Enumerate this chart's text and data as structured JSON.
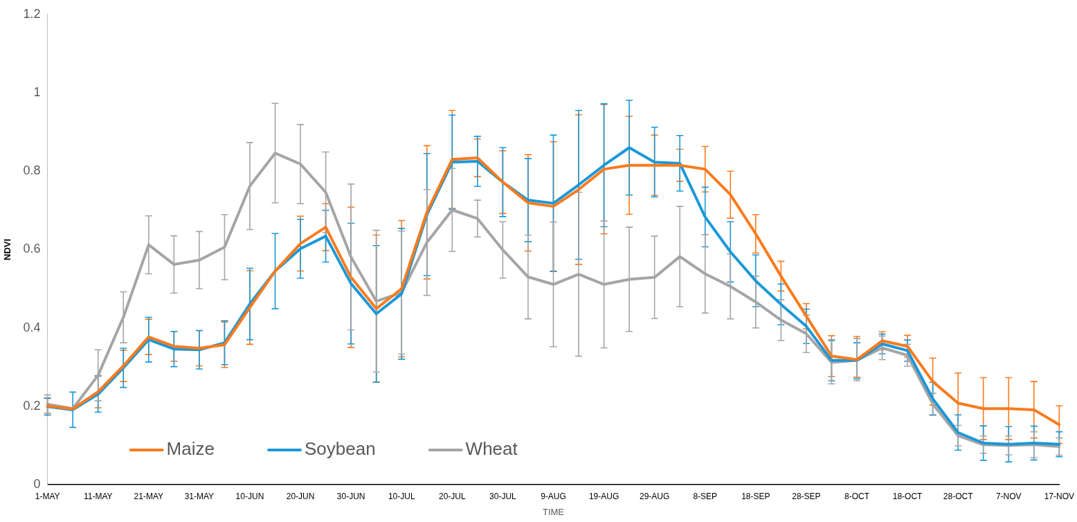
{
  "chart_data": {
    "type": "line",
    "xlabel": "TIME",
    "ylabel": "NDVI",
    "categories": [
      "1-MAY",
      null,
      "11-MAY",
      null,
      "21-MAY",
      null,
      "31-MAY",
      null,
      "10-JUN",
      null,
      "20-JUN",
      null,
      "30-JUN",
      null,
      "10-JUL",
      null,
      "20-JUL",
      null,
      "30-JUL",
      null,
      "9-AUG",
      null,
      "19-AUG",
      null,
      "29-AUG",
      null,
      "8-SEP",
      null,
      "18-SEP",
      null,
      "28-SEP",
      null,
      "8-OCT",
      null,
      "18-OCT",
      null,
      "28-OCT",
      null,
      "7-NOV",
      null,
      "17-NOV"
    ],
    "series": [
      {
        "name": "Maize",
        "color": "#f97b1e",
        "values": [
          0.201,
          0.193,
          0.237,
          0.303,
          0.377,
          0.353,
          0.348,
          0.357,
          0.452,
          0.545,
          0.615,
          0.657,
          0.529,
          0.449,
          0.5,
          0.695,
          0.83,
          0.834,
          0.772,
          0.719,
          0.71,
          0.753,
          0.805,
          0.815,
          0.815,
          0.815,
          0.805,
          0.74,
          0.64,
          0.532,
          0.43,
          0.328,
          0.319,
          0.367,
          0.353,
          0.263,
          0.208,
          0.194,
          0.194,
          0.191,
          0.153
        ],
        "errors": [
          0.019,
          null,
          0.041,
          0.04,
          0.045,
          0.038,
          0.045,
          0.058,
          0.094,
          null,
          0.07,
          0.06,
          0.179,
          0.188,
          0.174,
          0.17,
          0.125,
          0.048,
          0.08,
          0.123,
          0.165,
          0.191,
          0.165,
          0.125,
          0.077,
          0.041,
          0.058,
          0.06,
          0.049,
          0.038,
          0.032,
          0.052,
          [
            0.274,
            0.378
          ],
          0.023,
          0.028,
          0.06,
          0.077,
          0.079,
          0.079,
          0.072,
          0.048
        ]
      },
      {
        "name": "Soybean",
        "color": "#1b98d8",
        "values": [
          0.199,
          0.191,
          0.231,
          0.298,
          0.37,
          0.346,
          0.344,
          0.362,
          0.461,
          0.545,
          0.602,
          0.634,
          0.513,
          0.436,
          0.487,
          0.689,
          0.823,
          0.825,
          0.772,
          0.726,
          0.718,
          0.765,
          0.815,
          0.86,
          0.823,
          0.82,
          0.683,
          0.594,
          0.52,
          0.46,
          0.404,
          0.317,
          0.317,
          0.359,
          0.342,
          0.219,
          0.133,
          0.106,
          0.103,
          0.106,
          0.103
        ],
        "errors": [
          0.022,
          0.045,
          0.046,
          0.05,
          0.057,
          0.045,
          0.049,
          0.056,
          0.091,
          0.096,
          0.075,
          0.066,
          0.154,
          0.174,
          0.167,
          0.156,
          0.12,
          0.064,
          0.088,
          0.106,
          0.174,
          0.19,
          0.157,
          0.121,
          0.089,
          0.071,
          0.076,
          0.077,
          0.066,
          0.052,
          0.044,
          0.052,
          [
            0.27,
            0.362
          ],
          0.025,
          0.027,
          0.042,
          0.045,
          0.044,
          0.045,
          0.043,
          0.032
        ]
      },
      {
        "name": "Wheat",
        "color": "#a5a5a5",
        "values": [
          0.205,
          0.194,
          0.279,
          0.427,
          0.612,
          0.562,
          0.573,
          0.606,
          0.762,
          0.846,
          0.818,
          0.746,
          0.581,
          0.468,
          0.49,
          0.618,
          0.701,
          0.679,
          0.599,
          0.53,
          0.511,
          0.537,
          0.511,
          0.524,
          0.529,
          0.582,
          0.538,
          0.506,
          0.466,
          0.42,
          0.385,
          0.312,
          0.317,
          0.349,
          0.33,
          0.206,
          0.125,
          0.102,
          0.1,
          0.102,
          0.097
        ],
        "errors": [
          0.024,
          null,
          0.065,
          0.065,
          0.074,
          0.073,
          0.073,
          0.083,
          0.111,
          0.127,
          0.101,
          0.103,
          0.186,
          0.181,
          0.157,
          0.135,
          0.106,
          0.047,
          0.072,
          0.107,
          0.159,
          0.209,
          0.162,
          0.133,
          0.105,
          0.128,
          0.1,
          0.083,
          0.066,
          0.052,
          0.048,
          0.055,
          [
            0.265,
            0.373
          ],
          0.03,
          0.028,
          0.027,
          0.026,
          0.022,
          0.024,
          0.033,
          0.022
        ]
      }
    ],
    "ylim": [
      0,
      1.2
    ],
    "yticks": [
      0,
      0.2,
      0.4,
      0.6,
      0.8,
      1,
      1.2
    ],
    "grid": false,
    "legend": "bottom left",
    "marker": "none",
    "line_style": "solid"
  }
}
